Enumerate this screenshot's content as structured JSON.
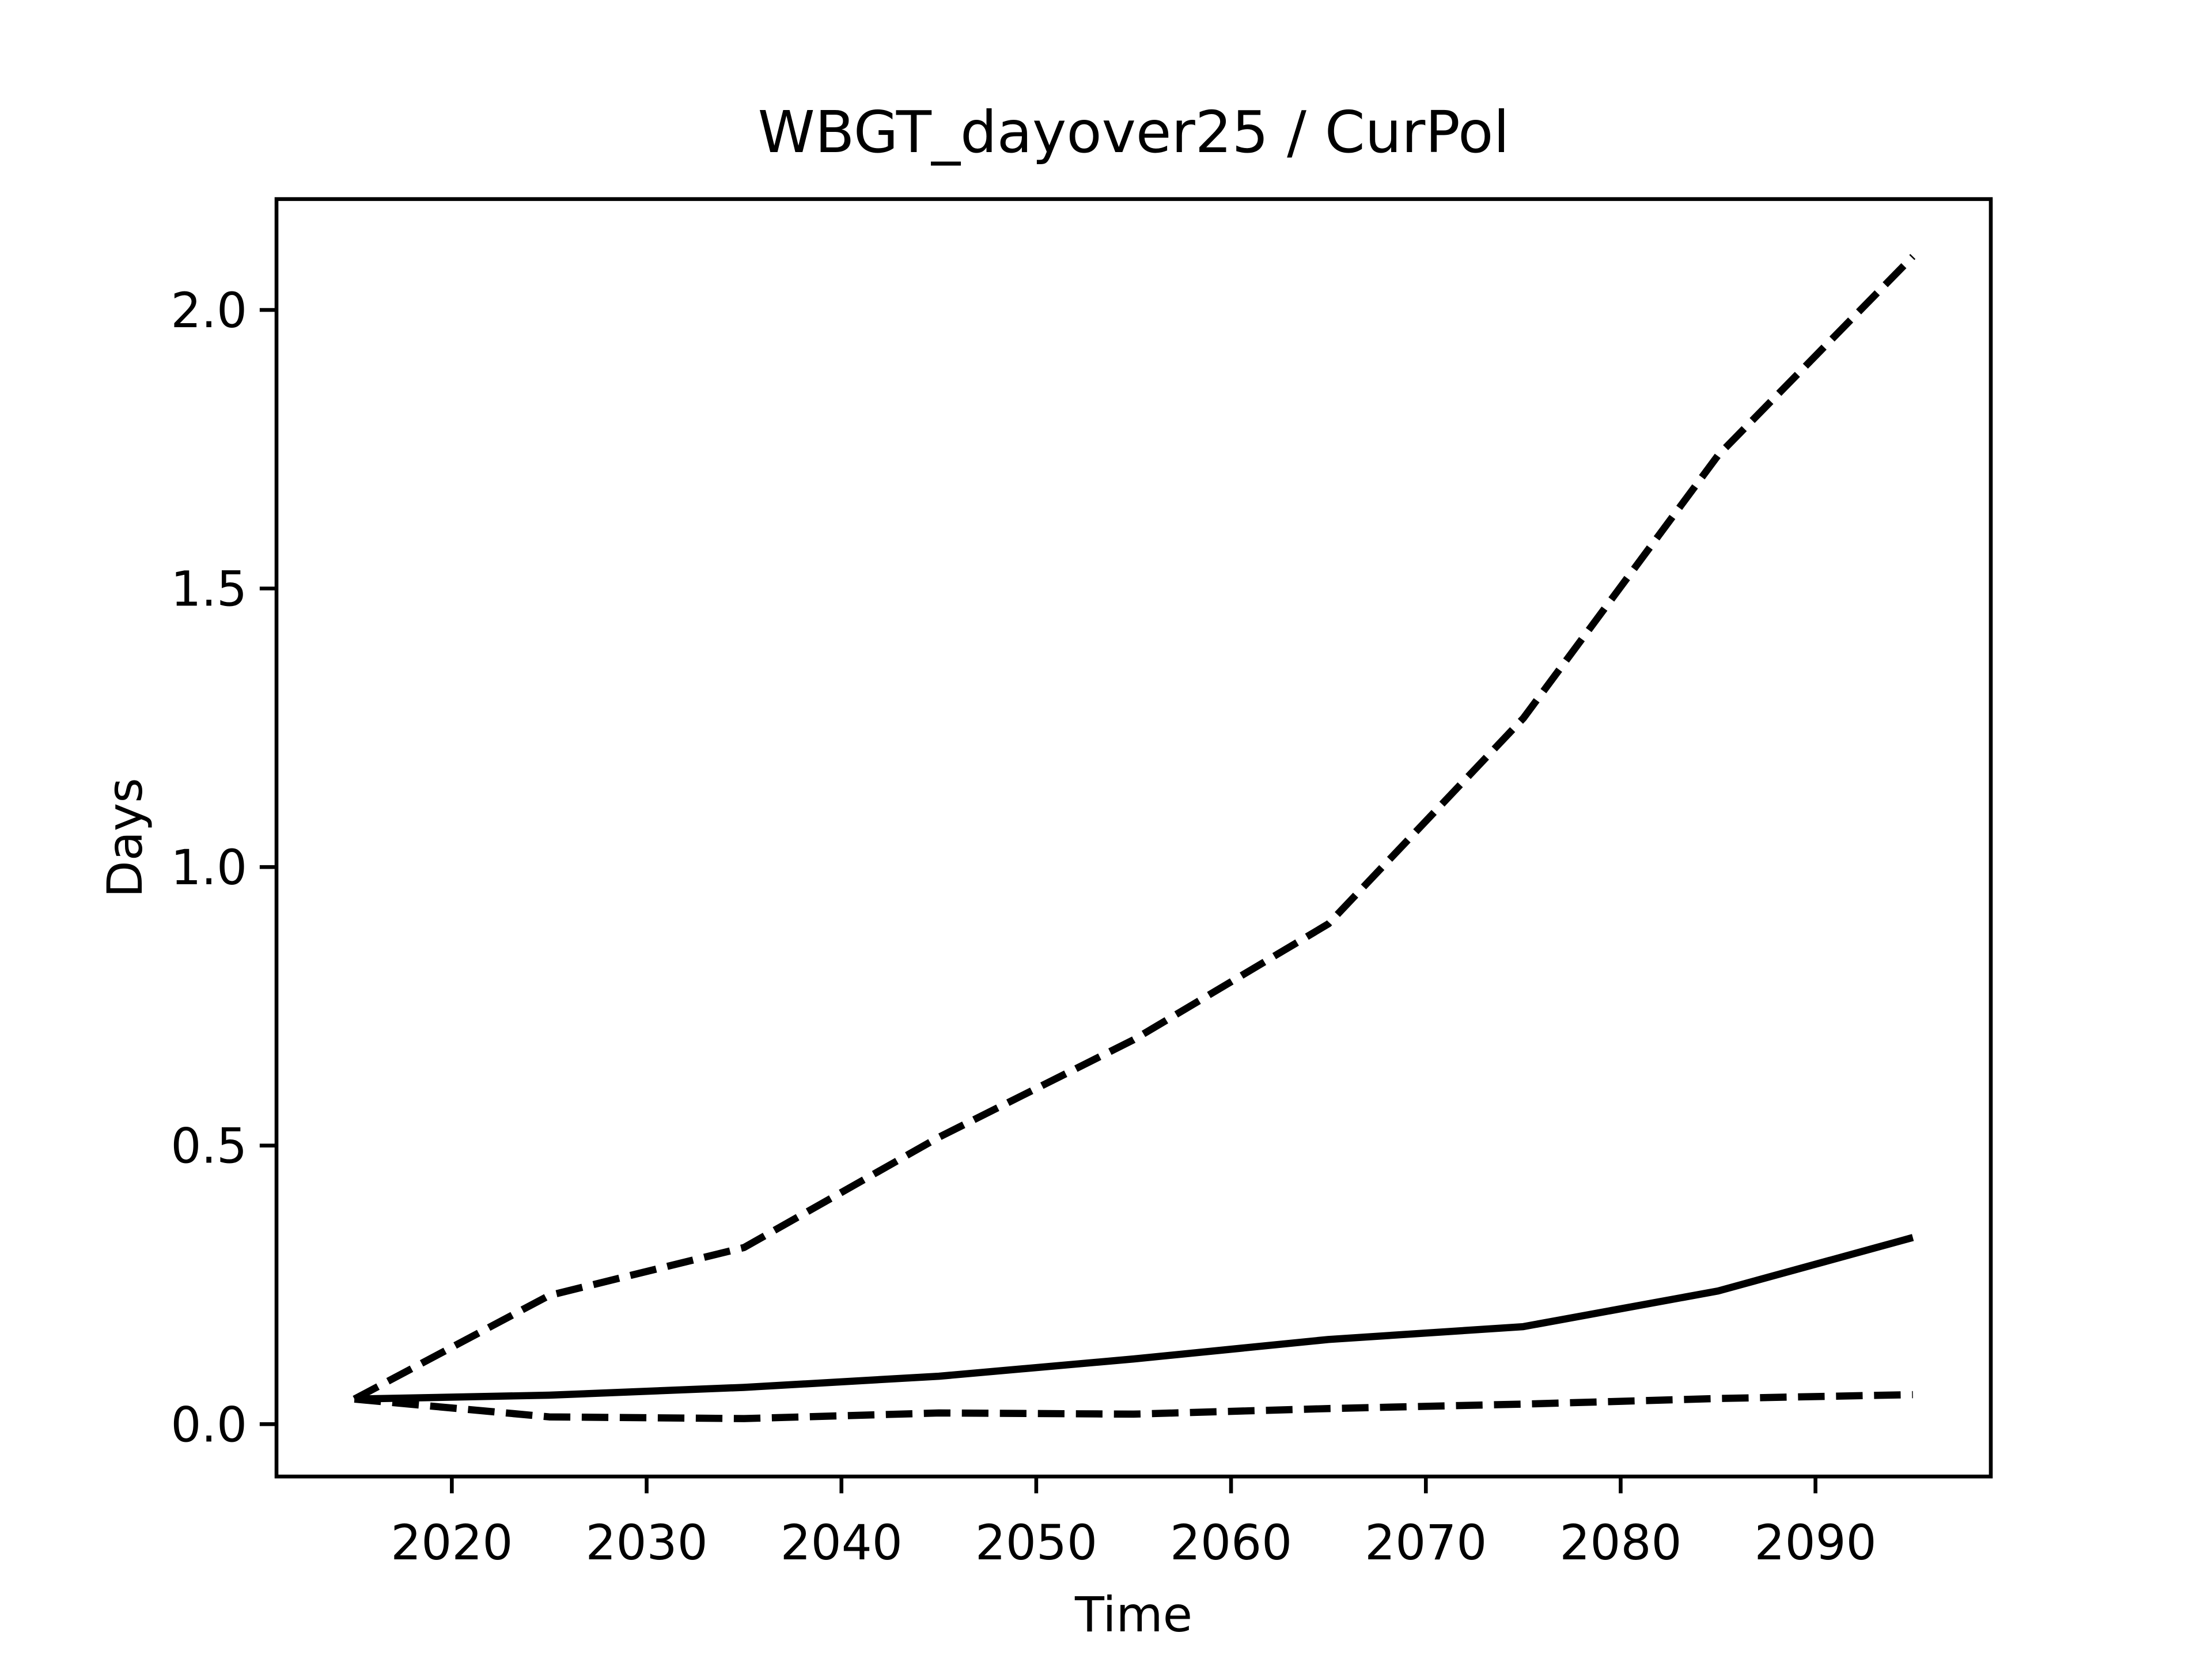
{
  "chart_data": {
    "type": "line",
    "title": "WBGT_dayover25 / CurPol",
    "x_label": "Time",
    "y_label": "Days",
    "x": [
      2015,
      2025,
      2035,
      2045,
      2055,
      2065,
      2075,
      2085,
      2095
    ],
    "series": [
      {
        "color": "#000000",
        "linestyle": "solid",
        "values": [
          0.045,
          0.052,
          0.066,
          0.086,
          0.117,
          0.152,
          0.175,
          0.239,
          0.335
        ]
      },
      {
        "color": "#000000",
        "linestyle": "dashed",
        "values": [
          0.045,
          0.231,
          0.317,
          0.515,
          0.69,
          0.898,
          1.267,
          1.739,
          2.096
        ]
      },
      {
        "color": "#000000",
        "linestyle": "dashed",
        "values": [
          0.045,
          0.013,
          0.01,
          0.02,
          0.018,
          0.028,
          0.036,
          0.046,
          0.053
        ]
      }
    ],
    "xlim": [
      2011,
      2099
    ],
    "xticks": [
      2020,
      2030,
      2040,
      2050,
      2060,
      2070,
      2080,
      2090
    ],
    "ylim": [
      -0.094,
      2.199
    ],
    "yticks": [
      {
        "value": 0,
        "label": "0.0"
      },
      {
        "value": 0.5,
        "label": "0.5"
      },
      {
        "value": 1,
        "label": "1.0"
      },
      {
        "value": 1.5,
        "label": "1.5"
      },
      {
        "value": 2,
        "label": "2.0"
      }
    ],
    "grid": false
  }
}
